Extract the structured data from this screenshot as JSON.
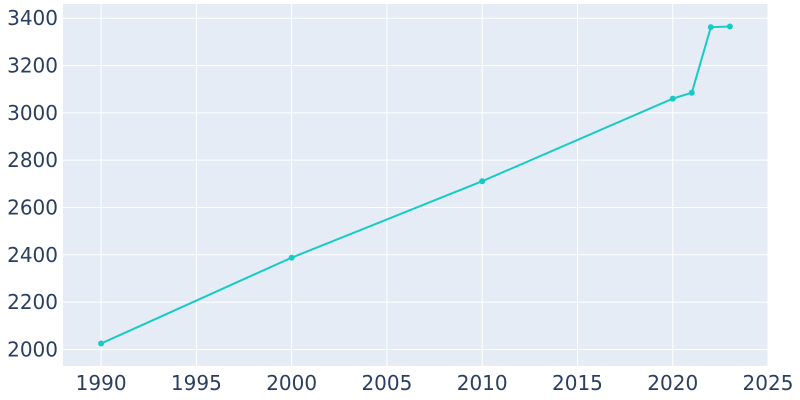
{
  "chart_data": {
    "type": "line",
    "title": "",
    "xlabel": "",
    "ylabel": "",
    "xlim": [
      1988,
      2025
    ],
    "ylim": [
      1930,
      3460
    ],
    "grid": true,
    "legend": "none",
    "x_ticks": [
      1990,
      1995,
      2000,
      2005,
      2010,
      2015,
      2020,
      2025
    ],
    "y_ticks": [
      2000,
      2200,
      2400,
      2600,
      2800,
      3000,
      3200,
      3400
    ],
    "colors": {
      "plot_background": "#e5ecf6",
      "line": "#17cbc4",
      "tick_text": "#2a3f5f",
      "grid": "#ffffff"
    },
    "series": [
      {
        "x": [
          1990,
          2000,
          2010,
          2020,
          2021,
          2022,
          2023
        ],
        "values": [
          2025,
          2388,
          2711,
          3060,
          3085,
          3362,
          3365
        ]
      }
    ]
  }
}
